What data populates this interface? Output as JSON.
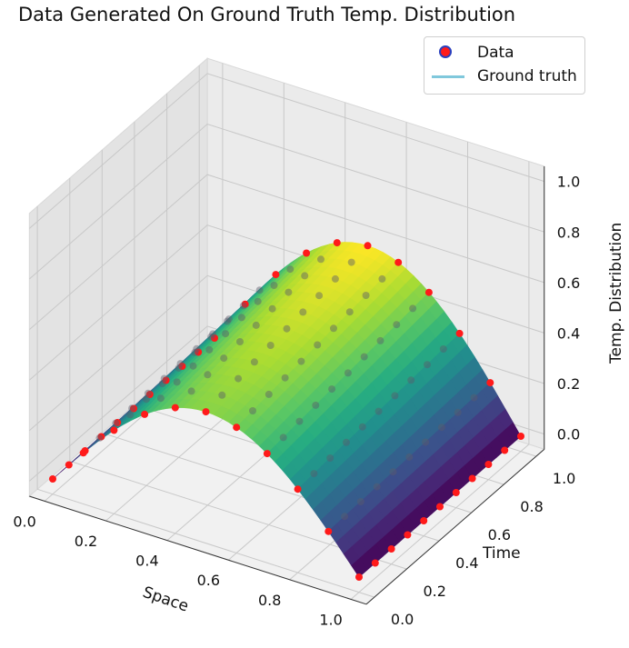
{
  "chart_data": {
    "type": "surface",
    "title": "Data Generated On Ground Truth Temp. Distribution",
    "xlabel": "Space",
    "ylabel": "Time",
    "zlabel": "Temp. Distribution",
    "xlim": [
      0,
      1
    ],
    "ylim": [
      0,
      1
    ],
    "zlim": [
      0,
      1
    ],
    "x_ticks": [
      "0.0",
      "0.2",
      "0.4",
      "0.6",
      "0.8",
      "1.0"
    ],
    "y_ticks": [
      "0.0",
      "0.2",
      "0.4",
      "0.6",
      "0.8",
      "1.0"
    ],
    "z_ticks": [
      "0.0",
      "0.2",
      "0.4",
      "0.6",
      "0.8",
      "1.0"
    ],
    "grid": true,
    "legend_position": "top-right",
    "legend": [
      {
        "label": "Data",
        "marker": "circle",
        "color": "#ff0000",
        "edgecolor": "#2a3fbd"
      },
      {
        "label": "Ground truth",
        "marker": "line",
        "color": "#80c8dc"
      }
    ],
    "colormap": "viridis",
    "series": [
      {
        "name": "Data",
        "kind": "scatter",
        "x_samples": [
          0.0,
          0.1,
          0.2,
          0.3,
          0.4,
          0.5,
          0.6,
          0.7,
          0.8,
          0.9,
          1.0
        ],
        "y_samples": [
          0.0,
          0.1,
          0.2,
          0.3,
          0.4,
          0.5,
          0.6,
          0.7,
          0.8,
          0.9,
          1.0
        ],
        "z_max_at_t0": 0.46,
        "z_max_at_t1": 0.56
      },
      {
        "name": "Ground truth",
        "kind": "surface"
      }
    ]
  }
}
